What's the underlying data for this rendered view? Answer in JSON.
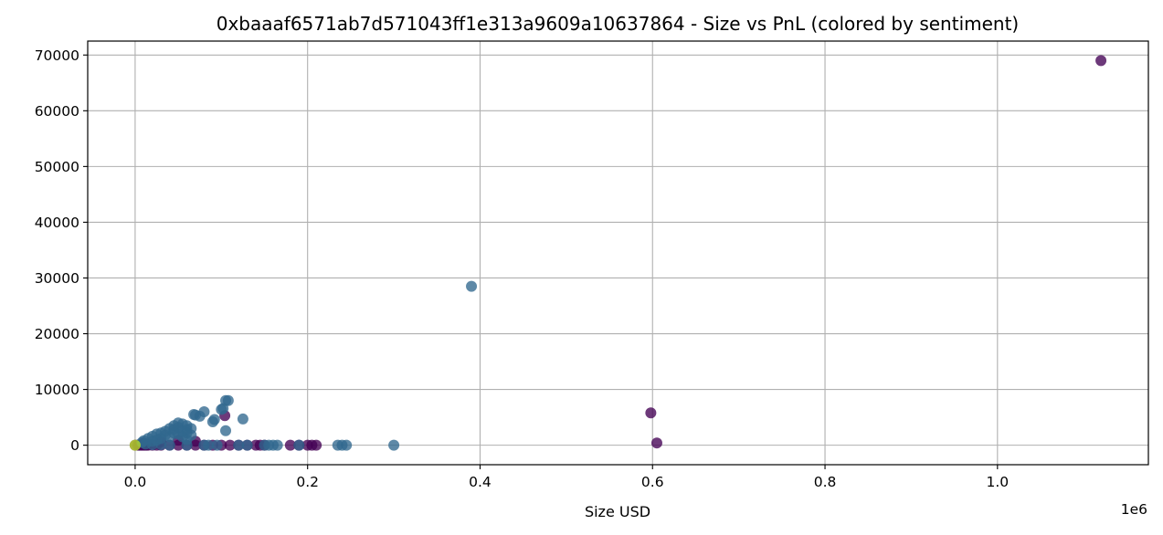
{
  "chart_data": {
    "type": "scatter",
    "title": "0xbaaaf6571ab7d571043ff1e313a9609a10637864 - Size vs PnL (colored by sentiment)",
    "xlabel": "Size USD",
    "ylabel": "",
    "x_offset_label": "1e6",
    "xlim": [
      -0.055,
      1.175
    ],
    "ylim": [
      -3500,
      72500
    ],
    "x_ticks": [
      0.0,
      0.2,
      0.4,
      0.6,
      0.8,
      1.0
    ],
    "x_tick_labels": [
      "0.0",
      "0.2",
      "0.4",
      "0.6",
      "0.8",
      "1.0"
    ],
    "y_ticks": [
      0,
      10000,
      20000,
      30000,
      40000,
      50000,
      60000,
      70000
    ],
    "y_tick_labels": [
      "0",
      "10000",
      "20000",
      "30000",
      "40000",
      "50000",
      "60000",
      "70000"
    ],
    "grid": true,
    "legend": "none",
    "colors": {
      "purple": "#440154",
      "blue": "#31688e",
      "yellow": "#bddf26"
    },
    "series": [
      {
        "color": "purple",
        "points": [
          [
            1.12,
            69000
          ],
          [
            0.598,
            5800
          ],
          [
            0.605,
            400
          ],
          [
            0.104,
            5300
          ],
          [
            0.0,
            0
          ],
          [
            0.003,
            0
          ],
          [
            0.005,
            0
          ],
          [
            0.007,
            0
          ],
          [
            0.009,
            0
          ],
          [
            0.011,
            0
          ],
          [
            0.013,
            0
          ],
          [
            0.015,
            0
          ],
          [
            0.02,
            0
          ],
          [
            0.025,
            0
          ],
          [
            0.03,
            0
          ],
          [
            0.04,
            0
          ],
          [
            0.05,
            0
          ],
          [
            0.06,
            0
          ],
          [
            0.07,
            0
          ],
          [
            0.08,
            0
          ],
          [
            0.09,
            0
          ],
          [
            0.1,
            0
          ],
          [
            0.11,
            0
          ],
          [
            0.12,
            0
          ],
          [
            0.13,
            0
          ],
          [
            0.14,
            0
          ],
          [
            0.145,
            0
          ],
          [
            0.15,
            0
          ],
          [
            0.18,
            0
          ],
          [
            0.19,
            0
          ],
          [
            0.2,
            0
          ],
          [
            0.205,
            0
          ],
          [
            0.21,
            0
          ],
          [
            0.01,
            400
          ],
          [
            0.03,
            600
          ],
          [
            0.05,
            900
          ],
          [
            0.07,
            700
          ]
        ]
      },
      {
        "color": "blue",
        "points": [
          [
            0.39,
            28500
          ],
          [
            0.3,
            0
          ],
          [
            0.245,
            0
          ],
          [
            0.24,
            0
          ],
          [
            0.235,
            0
          ],
          [
            0.19,
            0
          ],
          [
            0.165,
            0
          ],
          [
            0.16,
            0
          ],
          [
            0.155,
            0
          ],
          [
            0.15,
            0
          ],
          [
            0.105,
            8000
          ],
          [
            0.108,
            8000
          ],
          [
            0.1,
            6400
          ],
          [
            0.102,
            6600
          ],
          [
            0.08,
            6000
          ],
          [
            0.07,
            5400
          ],
          [
            0.075,
            5200
          ],
          [
            0.068,
            5500
          ],
          [
            0.09,
            4200
          ],
          [
            0.092,
            4600
          ],
          [
            0.125,
            4700
          ],
          [
            0.105,
            2600
          ],
          [
            0.05,
            4000
          ],
          [
            0.055,
            3800
          ],
          [
            0.06,
            3500
          ],
          [
            0.045,
            3500
          ],
          [
            0.04,
            3000
          ],
          [
            0.035,
            2500
          ],
          [
            0.03,
            2200
          ],
          [
            0.025,
            2000
          ],
          [
            0.02,
            1600
          ],
          [
            0.015,
            1200
          ],
          [
            0.01,
            800
          ],
          [
            0.008,
            500
          ],
          [
            0.045,
            2800
          ],
          [
            0.05,
            3200
          ],
          [
            0.055,
            2500
          ],
          [
            0.06,
            2800
          ],
          [
            0.065,
            3000
          ],
          [
            0.06,
            2200
          ],
          [
            0.065,
            1800
          ],
          [
            0.05,
            2000
          ],
          [
            0.04,
            1500
          ],
          [
            0.03,
            1200
          ],
          [
            0.035,
            1800
          ],
          [
            0.045,
            2200
          ],
          [
            0.025,
            900
          ],
          [
            0.02,
            700
          ],
          [
            0.055,
            1500
          ],
          [
            0.06,
            1000
          ],
          [
            0.012,
            200
          ],
          [
            0.02,
            100
          ],
          [
            0.03,
            100
          ],
          [
            0.04,
            0
          ],
          [
            0.06,
            0
          ],
          [
            0.08,
            0
          ],
          [
            0.085,
            0
          ],
          [
            0.095,
            0
          ],
          [
            0.12,
            0
          ],
          [
            0.13,
            0
          ]
        ]
      },
      {
        "color": "yellow",
        "points": [
          [
            0.0,
            0
          ]
        ]
      }
    ]
  }
}
